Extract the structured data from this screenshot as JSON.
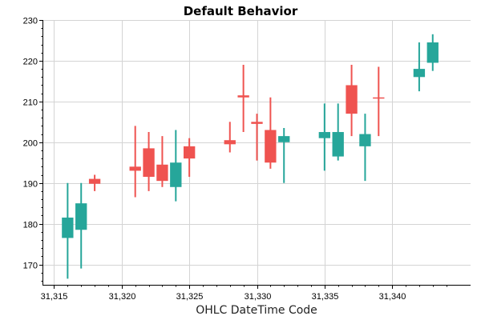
{
  "chart_data": {
    "type": "candlestick",
    "title": "Default Behavior",
    "xlabel": "OHLC DateTime Code",
    "ylabel": "",
    "xlim": [
      31314.2,
      31345.8
    ],
    "ylim": [
      165,
      230
    ],
    "grid": true,
    "x_ticks": [
      31315,
      31320,
      31325,
      31330,
      31335,
      31340
    ],
    "x_tick_labels": [
      "31,315",
      "31,320",
      "31,325",
      "31,330",
      "31,335",
      "31,340"
    ],
    "y_ticks": [
      170,
      180,
      190,
      200,
      210,
      220,
      230
    ],
    "y_tick_labels": [
      "170",
      "180",
      "190",
      "200",
      "210",
      "220",
      "230"
    ],
    "candle_width": 0.85,
    "colors": {
      "up": "#26a69a",
      "down": "#ef5350"
    },
    "candles": [
      {
        "x": 31316,
        "open": 176.5,
        "high": 190.0,
        "low": 166.5,
        "close": 181.5
      },
      {
        "x": 31317,
        "open": 178.5,
        "high": 190.0,
        "low": 169.0,
        "close": 185.0
      },
      {
        "x": 31318,
        "open": 191.0,
        "high": 192.0,
        "low": 188.0,
        "close": 189.8
      },
      {
        "x": 31321,
        "open": 194.0,
        "high": 204.0,
        "low": 186.5,
        "close": 193.0
      },
      {
        "x": 31322,
        "open": 198.5,
        "high": 202.5,
        "low": 188.0,
        "close": 191.5
      },
      {
        "x": 31323,
        "open": 194.5,
        "high": 201.5,
        "low": 189.0,
        "close": 190.5
      },
      {
        "x": 31324,
        "open": 189.0,
        "high": 203.0,
        "low": 185.5,
        "close": 195.0
      },
      {
        "x": 31325,
        "open": 199.0,
        "high": 201.0,
        "low": 191.5,
        "close": 196.0
      },
      {
        "x": 31328,
        "open": 200.5,
        "high": 205.0,
        "low": 197.5,
        "close": 199.5
      },
      {
        "x": 31329,
        "open": 211.5,
        "high": 219.0,
        "low": 202.5,
        "close": 211.0
      },
      {
        "x": 31330,
        "open": 205.0,
        "high": 207.0,
        "low": 195.5,
        "close": 204.5
      },
      {
        "x": 31331,
        "open": 203.0,
        "high": 211.0,
        "low": 193.5,
        "close": 195.0
      },
      {
        "x": 31332,
        "open": 200.0,
        "high": 203.5,
        "low": 190.0,
        "close": 201.5
      },
      {
        "x": 31335,
        "open": 201.0,
        "high": 209.5,
        "low": 193.0,
        "close": 202.5
      },
      {
        "x": 31336,
        "open": 196.5,
        "high": 209.5,
        "low": 195.5,
        "close": 202.5
      },
      {
        "x": 31337,
        "open": 214.0,
        "high": 219.0,
        "low": 201.5,
        "close": 207.0
      },
      {
        "x": 31338,
        "open": 199.0,
        "high": 207.0,
        "low": 190.5,
        "close": 202.0
      },
      {
        "x": 31339,
        "open": 211.0,
        "high": 218.5,
        "low": 201.5,
        "close": 210.8
      },
      {
        "x": 31342,
        "open": 216.0,
        "high": 224.5,
        "low": 212.5,
        "close": 218.0
      },
      {
        "x": 31343,
        "open": 219.5,
        "high": 226.5,
        "low": 217.5,
        "close": 224.5
      }
    ]
  }
}
